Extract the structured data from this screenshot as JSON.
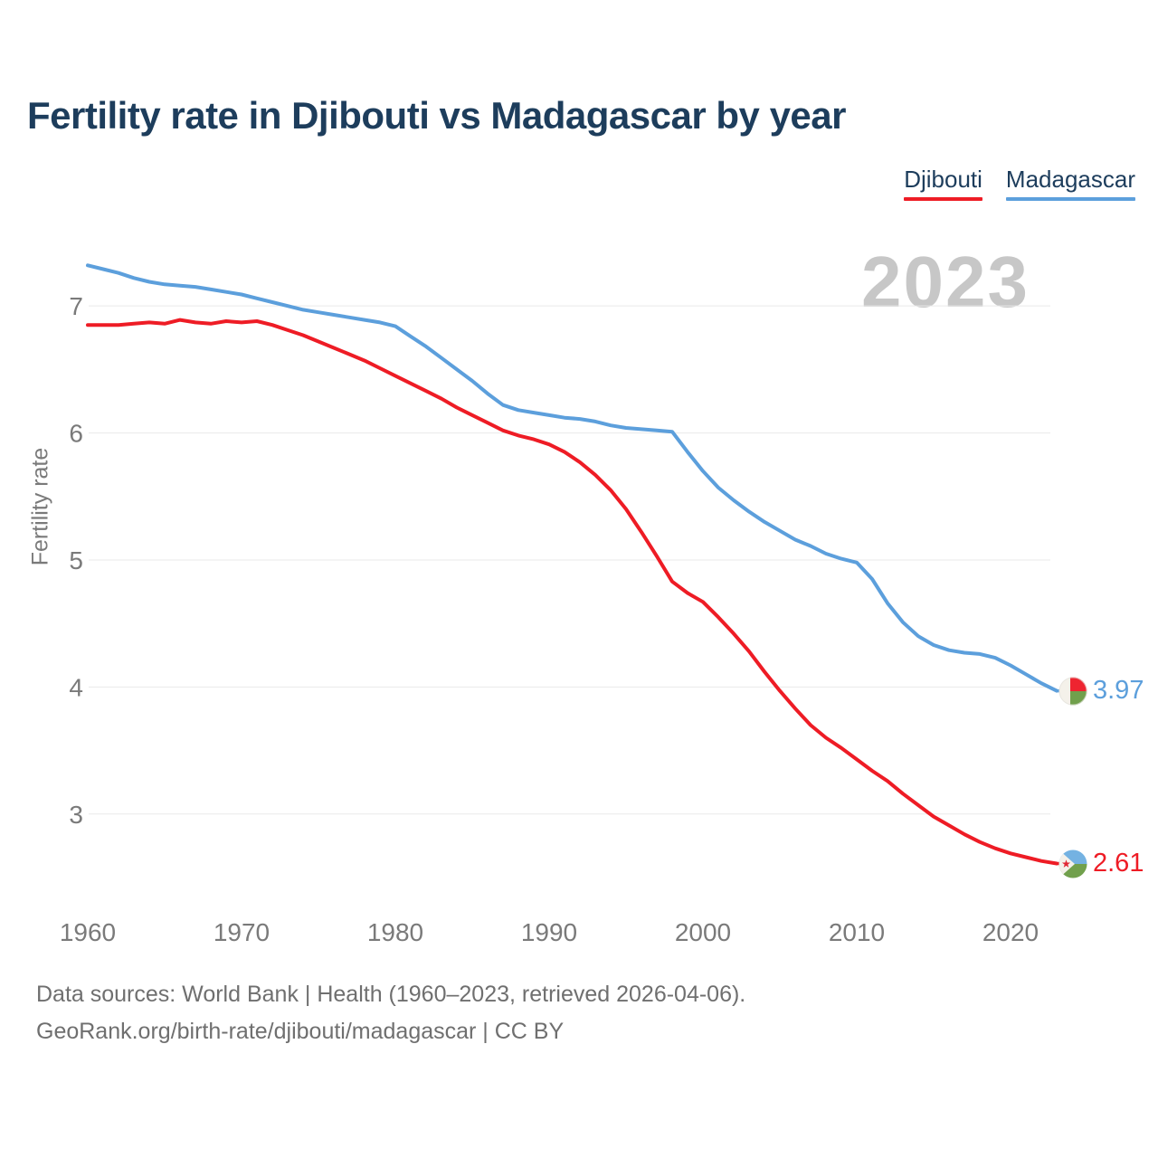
{
  "header": {
    "title": "Fertility rate in Djibouti vs Madagascar by year"
  },
  "legend": {
    "items": [
      {
        "label": "Djibouti",
        "color": "#ee1c25"
      },
      {
        "label": "Madagascar",
        "color": "#5c9fdc"
      }
    ]
  },
  "footer": {
    "line1": "Data sources: World Bank | Health (1960–2023, retrieved 2026-04-06).",
    "line2": "GeoRank.org/birth-rate/djibouti/madagascar | CC BY"
  },
  "colors": {
    "title_text": "#1d3d5c",
    "axis_text": "#7a7a7a",
    "gridline": "#eaeaea",
    "watermark": "#c7c7c7",
    "footer_text": "#6f6f6f",
    "djibouti_line": "#ee1c25",
    "madagascar_line": "#5c9fdc"
  },
  "chart_data": {
    "type": "line",
    "title": "Fertility rate in Djibouti vs Madagascar by year",
    "year_watermark": "2023",
    "xlabel": "",
    "ylabel": "Fertility rate",
    "x_ticks": [
      1960,
      1970,
      1980,
      1990,
      2000,
      2010,
      2020
    ],
    "y_ticks": [
      7,
      6,
      5,
      4,
      3
    ],
    "xlim": [
      1960,
      2023
    ],
    "ylim": [
      2.45,
      7.45
    ],
    "grid": true,
    "legend_position": "top-right",
    "x": [
      1960,
      1961,
      1962,
      1963,
      1964,
      1965,
      1966,
      1967,
      1968,
      1969,
      1970,
      1971,
      1972,
      1973,
      1974,
      1975,
      1976,
      1977,
      1978,
      1979,
      1980,
      1981,
      1982,
      1983,
      1984,
      1985,
      1986,
      1987,
      1988,
      1989,
      1990,
      1991,
      1992,
      1993,
      1994,
      1995,
      1996,
      1997,
      1998,
      1999,
      2000,
      2001,
      2002,
      2003,
      2004,
      2005,
      2006,
      2007,
      2008,
      2009,
      2010,
      2011,
      2012,
      2013,
      2014,
      2015,
      2016,
      2017,
      2018,
      2019,
      2020,
      2021,
      2022,
      2023
    ],
    "series": [
      {
        "name": "Djibouti",
        "color": "#ee1c25",
        "end_label": "2.61",
        "end_value": 2.61,
        "values": [
          6.85,
          6.85,
          6.85,
          6.86,
          6.87,
          6.86,
          6.89,
          6.87,
          6.86,
          6.88,
          6.87,
          6.88,
          6.85,
          6.81,
          6.77,
          6.72,
          6.67,
          6.62,
          6.57,
          6.51,
          6.45,
          6.39,
          6.33,
          6.27,
          6.2,
          6.14,
          6.08,
          6.02,
          5.98,
          5.95,
          5.91,
          5.85,
          5.77,
          5.67,
          5.55,
          5.4,
          5.22,
          5.03,
          4.83,
          4.74,
          4.67,
          4.55,
          4.42,
          4.28,
          4.12,
          3.97,
          3.83,
          3.7,
          3.6,
          3.52,
          3.43,
          3.34,
          3.26,
          3.16,
          3.07,
          2.98,
          2.91,
          2.84,
          2.78,
          2.73,
          2.69,
          2.66,
          2.63,
          2.61
        ]
      },
      {
        "name": "Madagascar",
        "color": "#5c9fdc",
        "end_label": "3.97",
        "end_value": 3.97,
        "values": [
          7.32,
          7.29,
          7.26,
          7.22,
          7.19,
          7.17,
          7.16,
          7.15,
          7.13,
          7.11,
          7.09,
          7.06,
          7.03,
          7.0,
          6.97,
          6.95,
          6.93,
          6.91,
          6.89,
          6.87,
          6.84,
          6.76,
          6.68,
          6.59,
          6.5,
          6.41,
          6.31,
          6.22,
          6.18,
          6.16,
          6.14,
          6.12,
          6.11,
          6.09,
          6.06,
          6.04,
          6.03,
          6.02,
          6.01,
          5.85,
          5.7,
          5.57,
          5.47,
          5.38,
          5.3,
          5.23,
          5.16,
          5.11,
          5.05,
          5.01,
          4.98,
          4.85,
          4.66,
          4.51,
          4.4,
          4.33,
          4.29,
          4.27,
          4.26,
          4.23,
          4.17,
          4.1,
          4.03,
          3.97
        ]
      }
    ]
  }
}
